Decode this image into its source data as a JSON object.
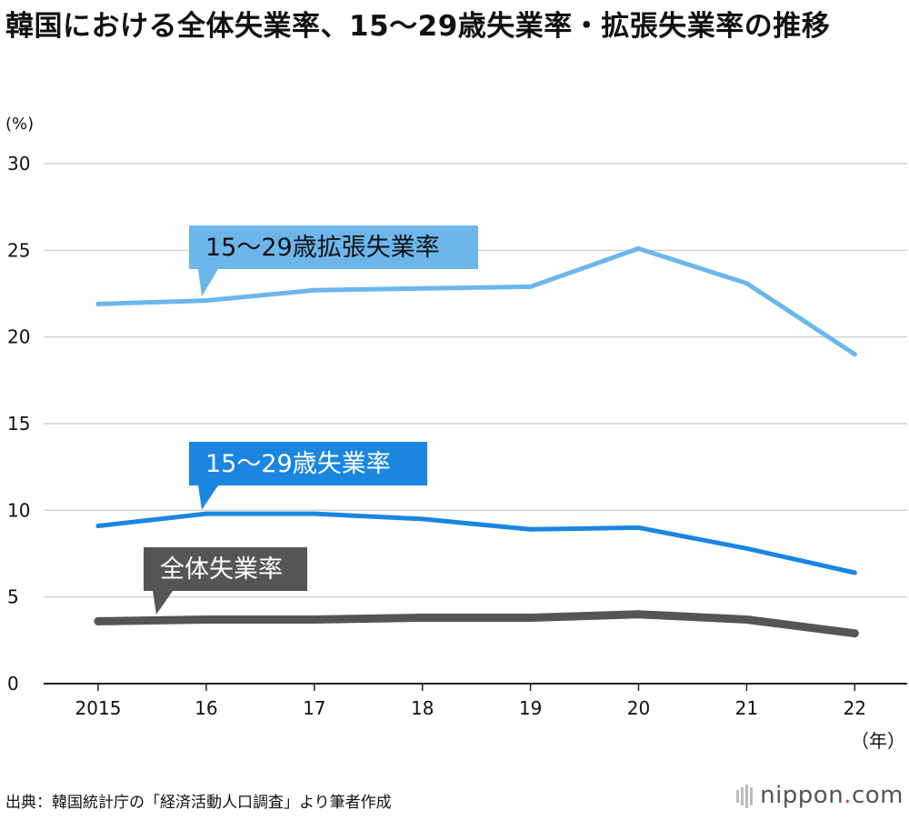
{
  "title": "韓国における全体失業率、15〜29歳失業率・拡張失業率の推移",
  "source": "出典：韓国統計庁の「経済活動人口調査」より筆者作成",
  "brand": {
    "name": "nippon",
    "dot": ".",
    "tld": "com"
  },
  "colors": {
    "extended": "#6cb6ec",
    "youth": "#1a86e0",
    "overall": "#555555",
    "axis": "#222222",
    "grid": "#c8c8c8"
  },
  "chart_data": {
    "type": "line",
    "ylabel": "(%)",
    "xlabel": "（年）",
    "ylim": [
      0,
      30
    ],
    "yticks": [
      0,
      5,
      10,
      15,
      20,
      25,
      30
    ],
    "categories": [
      "2015",
      "16",
      "17",
      "18",
      "19",
      "20",
      "21",
      "22"
    ],
    "grid": "horizontal",
    "series": [
      {
        "name": "15〜29歳拡張失業率",
        "color": "#6cb6ec",
        "values": [
          21.9,
          22.1,
          22.7,
          22.8,
          22.9,
          25.1,
          23.1,
          19.0
        ]
      },
      {
        "name": "15〜29歳失業率",
        "color": "#1a86e0",
        "values": [
          9.1,
          9.8,
          9.8,
          9.5,
          8.9,
          9.0,
          7.8,
          6.4
        ]
      },
      {
        "name": "全体失業率",
        "color": "#555555",
        "values": [
          3.6,
          3.7,
          3.7,
          3.8,
          3.8,
          4.0,
          3.7,
          2.9
        ]
      }
    ]
  }
}
